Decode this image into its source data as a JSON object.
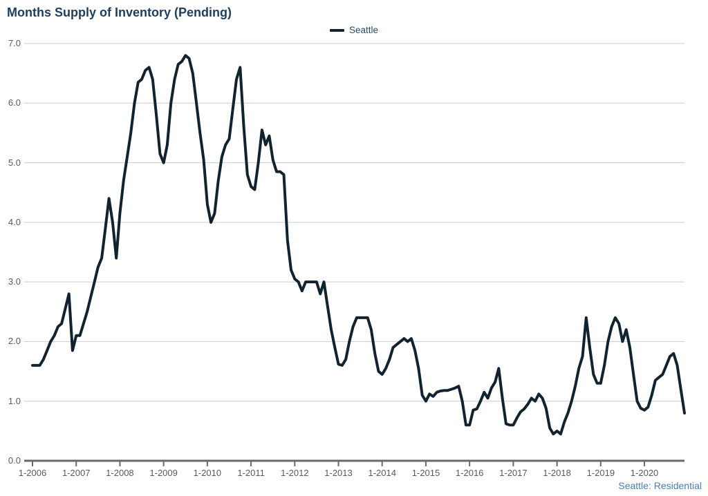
{
  "title": "Months Supply of Inventory (Pending)",
  "legend": {
    "label": "Seattle"
  },
  "footer": "Seattle: Residential",
  "colors": {
    "title": "#1e3e63",
    "legend_text": "#274b6d",
    "series_line": "#10232f",
    "footer_text": "#4a7eb5",
    "grid_line": "#cccccc",
    "axis_line": "#6a6a6a",
    "tick_label": "#595959"
  },
  "chart_data": {
    "type": "line",
    "title": "Months Supply of Inventory (Pending)",
    "xlabel": "",
    "ylabel": "",
    "ylim": [
      0,
      7
    ],
    "grid": "horizontal",
    "legend_position": "top-center",
    "x_unit": "month",
    "x_start": "1-2006",
    "x_end": "12-2020",
    "x_tick_labels": [
      "1-2006",
      "1-2007",
      "1-2008",
      "1-2009",
      "1-2010",
      "1-2011",
      "1-2012",
      "1-2013",
      "1-2014",
      "1-2015",
      "1-2016",
      "1-2017",
      "1-2018",
      "1-2019",
      "1-2020"
    ],
    "x_tick_every_n_points": 12,
    "y_ticks": [
      0,
      1,
      2,
      3,
      4,
      5,
      6,
      7
    ],
    "y_tick_labels": [
      "0.0",
      "1.0",
      "2.0",
      "3.0",
      "4.0",
      "5.0",
      "6.0",
      "7.0"
    ],
    "series": [
      {
        "name": "Seattle",
        "values": [
          1.6,
          1.6,
          1.6,
          1.7,
          1.85,
          2.0,
          2.1,
          2.25,
          2.3,
          2.55,
          2.8,
          1.85,
          2.1,
          2.1,
          2.3,
          2.5,
          2.75,
          3.0,
          3.25,
          3.4,
          3.9,
          4.4,
          4.0,
          3.4,
          4.15,
          4.7,
          5.1,
          5.5,
          6.0,
          6.35,
          6.4,
          6.55,
          6.6,
          6.4,
          5.8,
          5.15,
          5.0,
          5.3,
          6.0,
          6.4,
          6.65,
          6.7,
          6.8,
          6.75,
          6.5,
          6.0,
          5.5,
          5.05,
          4.3,
          4.0,
          4.15,
          4.7,
          5.1,
          5.3,
          5.4,
          5.9,
          6.4,
          6.6,
          5.6,
          4.8,
          4.6,
          4.55,
          5.0,
          5.55,
          5.3,
          5.45,
          5.05,
          4.85,
          4.85,
          4.8,
          3.7,
          3.2,
          3.05,
          3.0,
          2.85,
          3.0,
          3.0,
          3.0,
          3.0,
          2.8,
          3.0,
          2.6,
          2.2,
          1.9,
          1.62,
          1.6,
          1.7,
          2.0,
          2.25,
          2.4,
          2.4,
          2.4,
          2.4,
          2.2,
          1.8,
          1.5,
          1.45,
          1.55,
          1.7,
          1.9,
          1.95,
          2.0,
          2.05,
          2.0,
          2.05,
          1.85,
          1.55,
          1.1,
          1.0,
          1.12,
          1.08,
          1.15,
          1.17,
          1.18,
          1.18,
          1.2,
          1.22,
          1.25,
          1.0,
          0.6,
          0.6,
          0.85,
          0.87,
          1.0,
          1.15,
          1.05,
          1.22,
          1.32,
          1.55,
          1.05,
          0.62,
          0.6,
          0.6,
          0.72,
          0.82,
          0.87,
          0.95,
          1.05,
          1.0,
          1.12,
          1.05,
          0.88,
          0.55,
          0.45,
          0.5,
          0.45,
          0.65,
          0.8,
          1.0,
          1.25,
          1.55,
          1.75,
          2.4,
          1.9,
          1.45,
          1.3,
          1.3,
          1.6,
          2.0,
          2.25,
          2.4,
          2.3,
          2.0,
          2.2,
          1.9,
          1.45,
          1.0,
          0.88,
          0.85,
          0.9,
          1.1,
          1.35,
          1.4,
          1.45,
          1.6,
          1.75,
          1.8,
          1.6,
          1.2,
          0.8
        ]
      }
    ]
  }
}
